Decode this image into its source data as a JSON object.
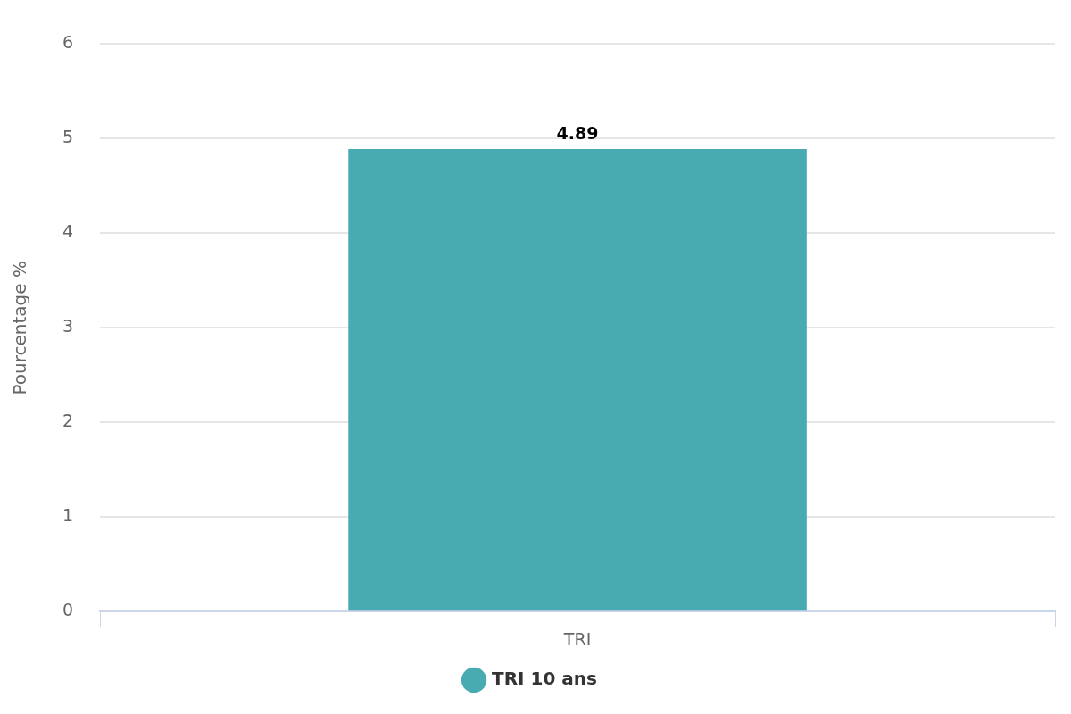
{
  "chart_data": {
    "type": "bar",
    "ylabel": "Pourcentage %",
    "categories": [
      "TRI"
    ],
    "series": [
      {
        "name": "TRI 10 ans",
        "color": "#48abb1",
        "values": [
          4.89
        ]
      }
    ],
    "ylim": [
      0,
      6
    ],
    "yticks": [
      0,
      1,
      2,
      3,
      4,
      5,
      6
    ],
    "grid": "y",
    "legend": "bottom",
    "data_labels": true
  }
}
